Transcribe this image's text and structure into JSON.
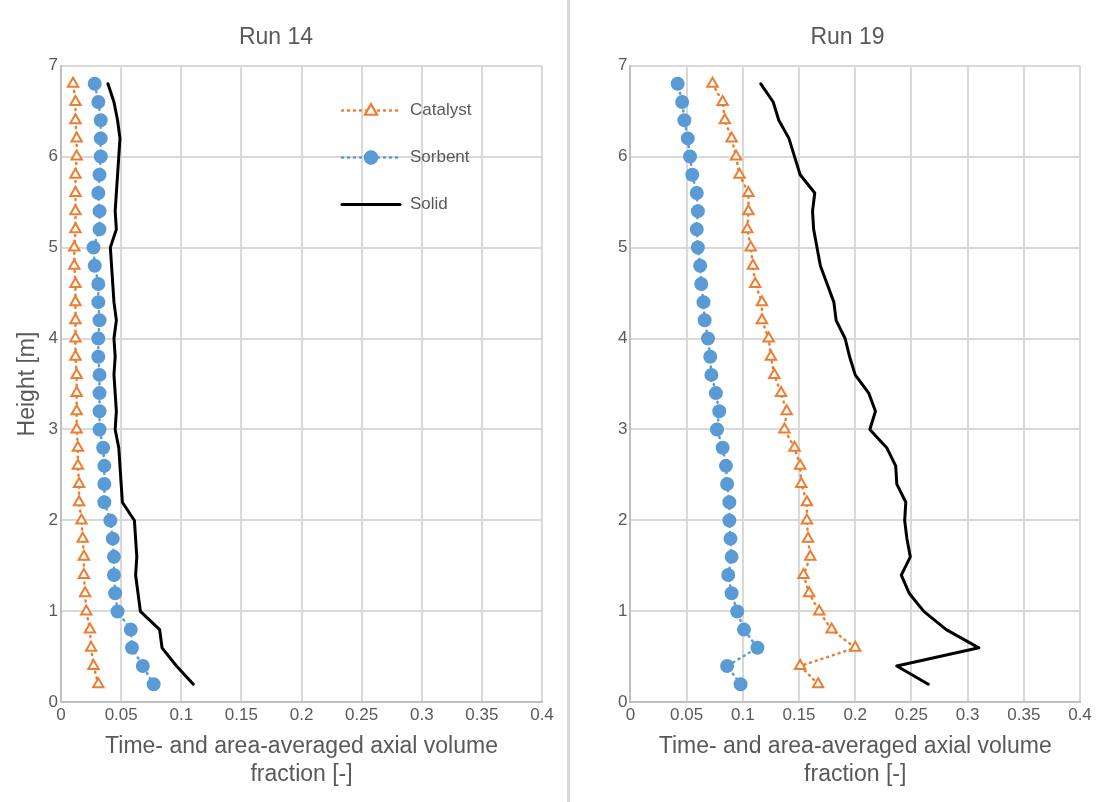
{
  "chart_data": [
    {
      "type": "line",
      "title": "Run 14",
      "xlabel": "Time- and area-averaged axial volume fraction [-]",
      "ylabel": "Height [m]",
      "xlim": [
        0,
        0.4
      ],
      "xticks": [
        0,
        0.05,
        0.1,
        0.15,
        0.2,
        0.25,
        0.3,
        0.35,
        0.4
      ],
      "ylim": [
        0,
        7
      ],
      "yticks": [
        0,
        1,
        2,
        3,
        4,
        5,
        6,
        7
      ],
      "grid": true,
      "legend": "top right",
      "series": [
        {
          "name": "Catalyst",
          "color": "#ed7d31",
          "marker": "triangle",
          "line_style": "dotted",
          "x": [
            0.031,
            0.027,
            0.025,
            0.024,
            0.021,
            0.02,
            0.019,
            0.019,
            0.018,
            0.017,
            0.015,
            0.015,
            0.014,
            0.014,
            0.013,
            0.013,
            0.013,
            0.013,
            0.012,
            0.012,
            0.012,
            0.012,
            0.012,
            0.011,
            0.011,
            0.012,
            0.012,
            0.012,
            0.012,
            0.013,
            0.013,
            0.012,
            0.012,
            0.01
          ],
          "values": [
            0.2,
            0.4,
            0.6,
            0.8,
            1,
            1.2,
            1.4,
            1.6,
            1.8,
            2,
            2.2,
            2.4,
            2.6,
            2.8,
            3,
            3.2,
            3.4,
            3.6,
            3.8,
            4,
            4.2,
            4.4,
            4.6,
            4.8,
            5,
            5.2,
            5.4,
            5.6,
            5.8,
            6,
            6.2,
            6.4,
            6.6,
            6.8
          ]
        },
        {
          "name": "Sorbent",
          "color": "#5b9bd5",
          "marker": "circle",
          "line_style": "dotted",
          "x": [
            0.077,
            0.068,
            0.059,
            0.058,
            0.047,
            0.045,
            0.044,
            0.044,
            0.043,
            0.041,
            0.036,
            0.036,
            0.036,
            0.035,
            0.032,
            0.032,
            0.032,
            0.032,
            0.031,
            0.031,
            0.032,
            0.031,
            0.031,
            0.028,
            0.027,
            0.032,
            0.032,
            0.031,
            0.032,
            0.033,
            0.033,
            0.033,
            0.031,
            0.028
          ],
          "values": [
            0.2,
            0.4,
            0.6,
            0.8,
            1,
            1.2,
            1.4,
            1.6,
            1.8,
            2,
            2.2,
            2.4,
            2.6,
            2.8,
            3,
            3.2,
            3.4,
            3.6,
            3.8,
            4,
            4.2,
            4.4,
            4.6,
            4.8,
            5,
            5.2,
            5.4,
            5.6,
            5.8,
            6,
            6.2,
            6.4,
            6.6,
            6.8
          ]
        },
        {
          "name": "Solid",
          "color": "#000000",
          "marker": "none",
          "line_style": "solid",
          "x": [
            0.11,
            0.096,
            0.084,
            0.082,
            0.066,
            0.064,
            0.062,
            0.063,
            0.062,
            0.061,
            0.051,
            0.05,
            0.049,
            0.048,
            0.045,
            0.046,
            0.045,
            0.044,
            0.045,
            0.044,
            0.046,
            0.044,
            0.043,
            0.042,
            0.041,
            0.046,
            0.045,
            0.046,
            0.047,
            0.048,
            0.049,
            0.047,
            0.044,
            0.039
          ],
          "values": [
            0.2,
            0.4,
            0.6,
            0.8,
            1,
            1.2,
            1.4,
            1.6,
            1.8,
            2,
            2.2,
            2.4,
            2.6,
            2.8,
            3,
            3.2,
            3.4,
            3.6,
            3.8,
            4,
            4.2,
            4.4,
            4.6,
            4.8,
            5,
            5.2,
            5.4,
            5.6,
            5.8,
            6,
            6.2,
            6.4,
            6.6,
            6.8
          ]
        }
      ]
    },
    {
      "type": "line",
      "title": "Run 19",
      "xlabel": "Time- and area-averaged axial volume fraction [-]",
      "xlim": [
        0,
        0.4
      ],
      "xticks": [
        0,
        0.05,
        0.1,
        0.15,
        0.2,
        0.25,
        0.3,
        0.35,
        0.4
      ],
      "ylim": [
        0,
        7
      ],
      "yticks": [
        0,
        1,
        2,
        3,
        4,
        5,
        6,
        7
      ],
      "grid": true,
      "series": [
        {
          "color": "#ed7d31",
          "marker": "triangle",
          "line_style": "dotted",
          "x": [
            0.167,
            0.151,
            0.2,
            0.179,
            0.168,
            0.159,
            0.154,
            0.16,
            0.158,
            0.157,
            0.157,
            0.152,
            0.151,
            0.146,
            0.137,
            0.139,
            0.134,
            0.128,
            0.125,
            0.123,
            0.117,
            0.117,
            0.111,
            0.109,
            0.107,
            0.104,
            0.105,
            0.105,
            0.097,
            0.094,
            0.09,
            0.084,
            0.082,
            0.073
          ],
          "values": [
            0.2,
            0.4,
            0.6,
            0.8,
            1,
            1.2,
            1.4,
            1.6,
            1.8,
            2,
            2.2,
            2.4,
            2.6,
            2.8,
            3,
            3.2,
            3.4,
            3.6,
            3.8,
            4,
            4.2,
            4.4,
            4.6,
            4.8,
            5,
            5.2,
            5.4,
            5.6,
            5.8,
            6,
            6.2,
            6.4,
            6.6,
            6.8
          ]
        },
        {
          "color": "#5b9bd5",
          "marker": "circle",
          "line_style": "dotted",
          "x": [
            0.098,
            0.086,
            0.113,
            0.101,
            0.095,
            0.09,
            0.087,
            0.09,
            0.089,
            0.088,
            0.088,
            0.086,
            0.085,
            0.082,
            0.077,
            0.079,
            0.076,
            0.072,
            0.071,
            0.069,
            0.066,
            0.065,
            0.063,
            0.062,
            0.06,
            0.059,
            0.06,
            0.059,
            0.055,
            0.053,
            0.051,
            0.048,
            0.046,
            0.042
          ],
          "values": [
            0.2,
            0.4,
            0.6,
            0.8,
            1,
            1.2,
            1.4,
            1.6,
            1.8,
            2,
            2.2,
            2.4,
            2.6,
            2.8,
            3,
            3.2,
            3.4,
            3.6,
            3.8,
            4,
            4.2,
            4.4,
            4.6,
            4.8,
            5,
            5.2,
            5.4,
            5.6,
            5.8,
            6,
            6.2,
            6.4,
            6.6,
            6.8
          ]
        },
        {
          "color": "#000000",
          "marker": "none",
          "line_style": "solid",
          "x": [
            0.265,
            0.237,
            0.31,
            0.281,
            0.261,
            0.248,
            0.241,
            0.249,
            0.246,
            0.244,
            0.245,
            0.237,
            0.236,
            0.228,
            0.213,
            0.218,
            0.212,
            0.2,
            0.195,
            0.191,
            0.183,
            0.181,
            0.175,
            0.169,
            0.166,
            0.163,
            0.162,
            0.164,
            0.151,
            0.146,
            0.141,
            0.132,
            0.127,
            0.116
          ],
          "values": [
            0.2,
            0.4,
            0.6,
            0.8,
            1,
            1.2,
            1.4,
            1.6,
            1.8,
            2,
            2.2,
            2.4,
            2.6,
            2.8,
            3,
            3.2,
            3.4,
            3.6,
            3.8,
            4,
            4.2,
            4.4,
            4.6,
            4.8,
            5,
            5.2,
            5.4,
            5.6,
            5.8,
            6,
            6.2,
            6.4,
            6.6,
            6.8
          ]
        }
      ]
    }
  ]
}
